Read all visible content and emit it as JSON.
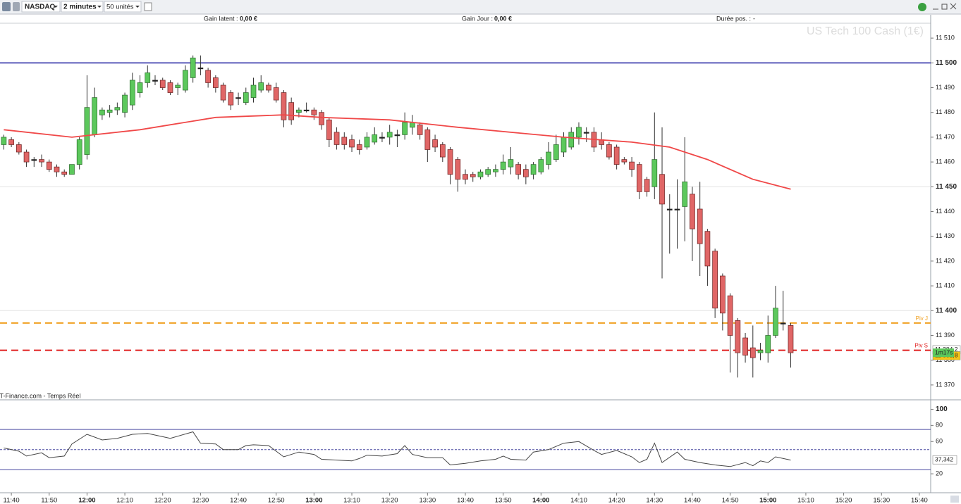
{
  "toolbar": {
    "instrument": "NASDAQ",
    "interval": "2 minutes",
    "size": "50 unités"
  },
  "status": {
    "gain_latent_label": "Gain latent :",
    "gain_latent": "0,00 €",
    "gain_jour_label": "Gain Jour :",
    "gain_jour": "0,00 €",
    "duree_label": "Durée pos. :",
    "duree": "-"
  },
  "chart_data": [
    {
      "type": "candlestick",
      "watermark": "US Tech 100 Cash (1€)",
      "source": "IT-Finance.com - Temps Réel",
      "up_color": "#5cc85c",
      "down_color": "#e06666",
      "x": [
        "11:38",
        "11:40",
        "11:42",
        "11:44",
        "11:46",
        "11:48",
        "11:50",
        "11:52",
        "11:54",
        "11:56",
        "11:58",
        "12:00",
        "12:02",
        "12:04",
        "12:06",
        "12:08",
        "12:10",
        "12:12",
        "12:14",
        "12:16",
        "12:18",
        "12:20",
        "12:22",
        "12:24",
        "12:26",
        "12:28",
        "12:30",
        "12:32",
        "12:34",
        "12:36",
        "12:38",
        "12:40",
        "12:42",
        "12:44",
        "12:46",
        "12:48",
        "12:50",
        "12:52",
        "12:54",
        "12:56",
        "12:58",
        "13:00",
        "13:02",
        "13:04",
        "13:06",
        "13:08",
        "13:10",
        "13:12",
        "13:14",
        "13:16",
        "13:18",
        "13:20",
        "13:22",
        "13:24",
        "13:26",
        "13:28",
        "13:30",
        "13:32",
        "13:34",
        "13:36",
        "13:38",
        "13:40",
        "13:42",
        "13:44",
        "13:46",
        "13:48",
        "13:50",
        "13:52",
        "13:54",
        "13:56",
        "13:58",
        "14:00",
        "14:02",
        "14:04",
        "14:06",
        "14:08",
        "14:10",
        "14:12",
        "14:14",
        "14:16",
        "14:18",
        "14:20",
        "14:22",
        "14:24",
        "14:26",
        "14:28",
        "14:30",
        "14:32",
        "14:34",
        "14:36",
        "14:38",
        "14:40",
        "14:42",
        "14:44",
        "14:46",
        "14:48",
        "14:50",
        "14:52",
        "14:54",
        "14:56",
        "14:58",
        "15:00",
        "15:02",
        "15:04",
        "15:06"
      ],
      "open": [
        11467,
        11469,
        11467,
        11464,
        11461,
        11461,
        11460,
        11458,
        11456,
        11455,
        11459,
        11463,
        11471,
        11479,
        11480,
        11481,
        11480,
        11483,
        11488,
        11492,
        11493,
        11493,
        11492,
        11490,
        11489,
        11494,
        11498,
        11497,
        11494,
        11491,
        11488,
        11486,
        11484,
        11486,
        11489,
        11491,
        11490,
        11488,
        11484,
        11480,
        11481,
        11481,
        11480,
        11477,
        11472,
        11470,
        11469,
        11467,
        11466,
        11468,
        11470,
        11470,
        11471,
        11471,
        11474,
        11475,
        11473,
        11469,
        11467,
        11465,
        11461,
        11455,
        11455,
        11454,
        11455,
        11456,
        11457,
        11458,
        11459,
        11457,
        11455,
        11456,
        11459,
        11461,
        11464,
        11466,
        11470,
        11472,
        11472,
        11469,
        11467,
        11466,
        11461,
        11460,
        11459,
        11453,
        11450,
        11455,
        11441,
        11441,
        11442,
        11447,
        11441,
        11432,
        11424,
        11414,
        11406,
        11396,
        11389,
        11385,
        11383,
        11383,
        11390,
        11395,
        11394
      ],
      "high": [
        11471,
        11470,
        11468,
        11465,
        11462,
        11463,
        11461,
        11459,
        11457,
        11459,
        11470,
        11495,
        11490,
        11482,
        11483,
        11484,
        11488,
        11496,
        11495,
        11499,
        11495,
        11494,
        11493,
        11492,
        11499,
        11503,
        11503,
        11498,
        11495,
        11492,
        11489,
        11488,
        11490,
        11494,
        11495,
        11492,
        11492,
        11489,
        11486,
        11482,
        11484,
        11482,
        11481,
        11478,
        11474,
        11472,
        11471,
        11469,
        11472,
        11474,
        11472,
        11475,
        11473,
        11480,
        11479,
        11476,
        11474,
        11471,
        11468,
        11466,
        11462,
        11457,
        11456,
        11457,
        11458,
        11459,
        11463,
        11466,
        11460,
        11459,
        11460,
        11462,
        11468,
        11471,
        11472,
        11474,
        11476,
        11474,
        11474,
        11472,
        11468,
        11467,
        11462,
        11462,
        11460,
        11454,
        11480,
        11474,
        11447,
        11453,
        11470,
        11450,
        11452,
        11433,
        11425,
        11415,
        11407,
        11397,
        11391,
        11394,
        11387,
        11398,
        11410,
        11408,
        11395
      ],
      "low": [
        11465,
        11466,
        11463,
        11458,
        11458,
        11458,
        11456,
        11454,
        11454,
        11455,
        11457,
        11461,
        11470,
        11477,
        11478,
        11479,
        11478,
        11481,
        11486,
        11490,
        11491,
        11489,
        11487,
        11487,
        11488,
        11492,
        11495,
        11490,
        11488,
        11484,
        11481,
        11483,
        11483,
        11484,
        11488,
        11488,
        11484,
        11474,
        11475,
        11478,
        11480,
        11477,
        11473,
        11466,
        11465,
        11465,
        11464,
        11463,
        11465,
        11467,
        11468,
        11467,
        11466,
        11469,
        11471,
        11469,
        11460,
        11464,
        11460,
        11451,
        11448,
        11451,
        11452,
        11453,
        11454,
        11454,
        11455,
        11455,
        11453,
        11451,
        11453,
        11455,
        11457,
        11460,
        11462,
        11465,
        11467,
        11468,
        11464,
        11465,
        11461,
        11457,
        11459,
        11454,
        11445,
        11446,
        11445,
        11413,
        11423,
        11425,
        11428,
        11420,
        11414,
        11410,
        11397,
        11392,
        11375,
        11373,
        11379,
        11373,
        11380,
        11379,
        11389,
        11392,
        11377
      ],
      "close": [
        11470,
        11467,
        11464,
        11460,
        11461,
        11460,
        11457,
        11456,
        11455,
        11459,
        11469,
        11482,
        11486,
        11481,
        11481,
        11482,
        11487,
        11493,
        11492,
        11496,
        11493,
        11490,
        11488,
        11491,
        11497,
        11502,
        11498,
        11492,
        11490,
        11485,
        11483,
        11486,
        11488,
        11491,
        11492,
        11489,
        11485,
        11477,
        11477,
        11481,
        11481,
        11479,
        11475,
        11469,
        11467,
        11467,
        11466,
        11465,
        11470,
        11471,
        11470,
        11472,
        11471,
        11476,
        11476,
        11471,
        11465,
        11466,
        11462,
        11455,
        11453,
        11453,
        11454,
        11456,
        11457,
        11457,
        11460,
        11461,
        11455,
        11454,
        11459,
        11461,
        11464,
        11467,
        11470,
        11472,
        11474,
        11472,
        11466,
        11467,
        11462,
        11459,
        11460,
        11457,
        11448,
        11448,
        11461,
        11443,
        11441,
        11441,
        11452,
        11433,
        11427,
        11418,
        11401,
        11399,
        11390,
        11383,
        11382,
        11381,
        11384,
        11390,
        11401,
        11395,
        11383
      ],
      "moving_average": {
        "color": "#f04848",
        "x": [
          "11:38",
          "11:56",
          "12:14",
          "12:34",
          "12:52",
          "13:02",
          "13:20",
          "13:38",
          "14:06",
          "14:24",
          "14:34",
          "14:44",
          "14:56",
          "15:06"
        ],
        "values": [
          11473,
          11470,
          11473,
          11478,
          11479,
          11478,
          11477,
          11474,
          11470,
          11468,
          11466,
          11461,
          11453,
          11449
        ]
      },
      "levels": [
        {
          "value": 11500,
          "color": "#1c1ca0"
        },
        {
          "name": "Piv J",
          "value": 11395,
          "color": "#f0a020"
        },
        {
          "name": "Piv S",
          "value": 11384,
          "color": "#e02020"
        }
      ],
      "price_labels": [
        {
          "value": 11384.2,
          "label": "11 384,2",
          "color": "#ffffff"
        },
        {
          "value": 11381.8,
          "label": "11 381,8",
          "color": "#f5c518"
        }
      ],
      "timer": "1m17s",
      "xlim": [
        "11:37",
        "15:43"
      ],
      "xticks": [
        "11:40",
        "11:50",
        "12:00",
        "12:10",
        "12:20",
        "12:30",
        "12:40",
        "12:50",
        "13:00",
        "13:10",
        "13:20",
        "13:30",
        "13:40",
        "13:50",
        "14:00",
        "14:10",
        "14:20",
        "14:30",
        "14:40",
        "14:50",
        "15:00",
        "15:10",
        "15:20",
        "15:30",
        "15:40"
      ],
      "ylim": [
        11364,
        11516
      ],
      "yticks": [
        {
          "value": 11370,
          "label": "11 370"
        },
        {
          "value": 11380,
          "label": "11 380"
        },
        {
          "value": 11390,
          "label": "11 390"
        },
        {
          "value": 11400,
          "label": "11 400"
        },
        {
          "value": 11410,
          "label": "11 410"
        },
        {
          "value": 11420,
          "label": "11 420"
        },
        {
          "value": 11430,
          "label": "11 430"
        },
        {
          "value": 11440,
          "label": "11 440"
        },
        {
          "value": 11450,
          "label": "11 450"
        },
        {
          "value": 11460,
          "label": "11 460"
        },
        {
          "value": 11470,
          "label": "11 470"
        },
        {
          "value": 11480,
          "label": "11 480"
        },
        {
          "value": 11490,
          "label": "11 490"
        },
        {
          "value": 11500,
          "label": "11 500"
        },
        {
          "value": 11510,
          "label": "11 510"
        }
      ]
    },
    {
      "type": "line",
      "color": "#444444",
      "x": [
        "11:38",
        "11:42",
        "11:44",
        "11:48",
        "11:50",
        "11:54",
        "11:56",
        "12:00",
        "12:04",
        "12:08",
        "12:12",
        "12:16",
        "12:20",
        "12:22",
        "12:28",
        "12:30",
        "12:34",
        "12:36",
        "12:40",
        "12:42",
        "12:44",
        "12:48",
        "12:50",
        "12:52",
        "12:56",
        "13:00",
        "13:02",
        "13:06",
        "13:10",
        "13:12",
        "13:14",
        "13:18",
        "13:22",
        "13:24",
        "13:26",
        "13:30",
        "13:34",
        "13:36",
        "13:40",
        "13:44",
        "13:48",
        "13:50",
        "13:52",
        "13:56",
        "13:58",
        "14:02",
        "14:06",
        "14:10",
        "14:14",
        "14:16",
        "14:20",
        "14:24",
        "14:26",
        "14:28",
        "14:30",
        "14:32",
        "14:36",
        "14:38",
        "14:42",
        "14:46",
        "14:50",
        "14:54",
        "14:56",
        "14:58",
        "15:00",
        "15:02",
        "15:06"
      ],
      "values": [
        52,
        48,
        42,
        46,
        40,
        42,
        57,
        69,
        62,
        64,
        69,
        70,
        66,
        64,
        72,
        58,
        57,
        50,
        50,
        55,
        56,
        55,
        48,
        41,
        47,
        44,
        38,
        37,
        36,
        39,
        43,
        42,
        45,
        55,
        44,
        40,
        40,
        31,
        33,
        36,
        38,
        42,
        38,
        37,
        47,
        50,
        58,
        60,
        49,
        44,
        49,
        41,
        34,
        38,
        58,
        34,
        47,
        38,
        34,
        31,
        29,
        34,
        30,
        36,
        34,
        41,
        37
      ],
      "bands": [
        {
          "value": 75,
          "color": "#4a4aa0"
        },
        {
          "value": 50,
          "color": "#4a4aa0",
          "dashed": true
        },
        {
          "value": 25,
          "color": "#4a4aa0"
        }
      ],
      "last_value": {
        "value": 37.342,
        "label": "37,342"
      },
      "ylim": [
        0,
        110
      ],
      "yticks": [
        20,
        60,
        80,
        100
      ]
    }
  ]
}
